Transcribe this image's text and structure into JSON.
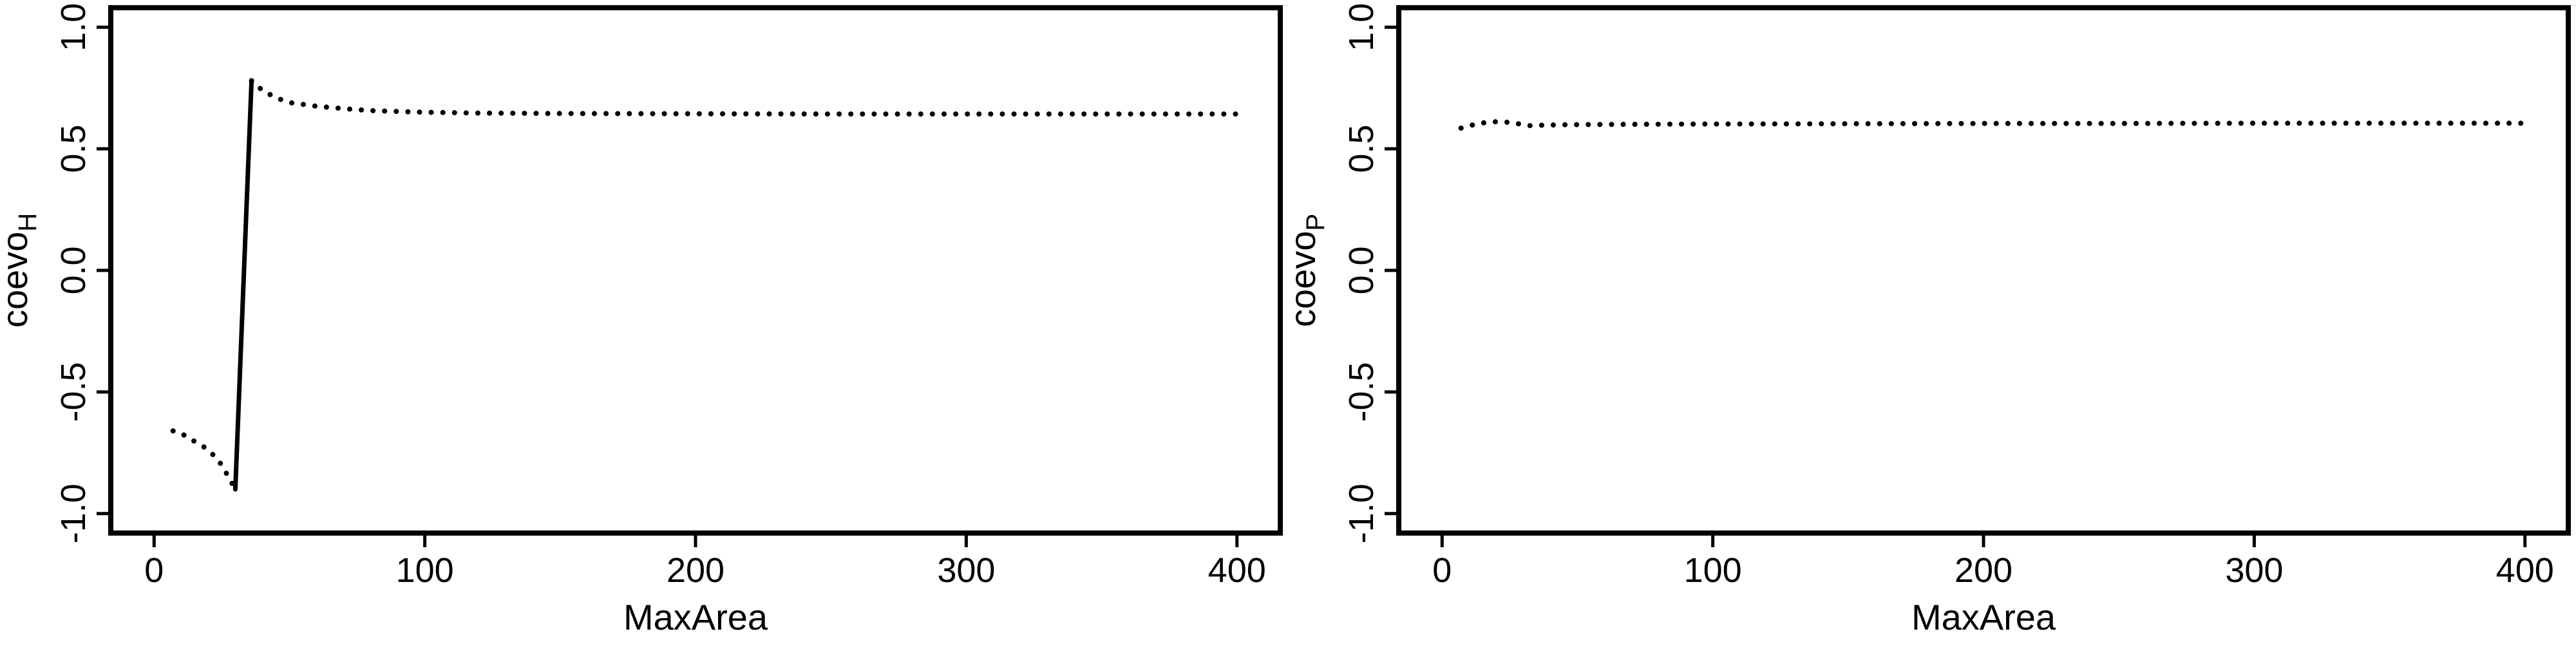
{
  "chart_data": [
    {
      "type": "line",
      "ylabel_main": "coevo",
      "ylabel_sub": "H",
      "xlabel": "MaxArea",
      "xlim": [
        0,
        400
      ],
      "ylim": [
        -1.0,
        1.0
      ],
      "x_ticks": [
        0,
        100,
        200,
        300,
        400
      ],
      "x_tick_labels": [
        "0",
        "100",
        "200",
        "300",
        "400"
      ],
      "y_ticks": [
        -1.0,
        -0.5,
        0.0,
        0.5,
        1.0
      ],
      "y_tick_labels": [
        "-1.0",
        "-0.5",
        "0.0",
        "0.5",
        "1.0"
      ],
      "grid": false,
      "series": [
        {
          "style": "dotted",
          "x": [
            7,
            10,
            13,
            16,
            19,
            22,
            25,
            28,
            30
          ],
          "y": [
            -0.66,
            -0.67,
            -0.69,
            -0.71,
            -0.73,
            -0.76,
            -0.8,
            -0.86,
            -0.9
          ]
        },
        {
          "style": "solid",
          "x": [
            30,
            36
          ],
          "y": [
            -0.9,
            0.78
          ]
        },
        {
          "style": "dotted",
          "x": [
            36,
            40,
            45,
            50,
            60,
            70,
            80,
            100,
            120,
            150,
            200,
            250,
            300,
            350,
            400
          ],
          "y": [
            0.78,
            0.74,
            0.71,
            0.69,
            0.675,
            0.665,
            0.657,
            0.65,
            0.647,
            0.645,
            0.644,
            0.643,
            0.643,
            0.643,
            0.643
          ]
        }
      ]
    },
    {
      "type": "line",
      "ylabel_main": "coevo",
      "ylabel_sub": "P",
      "xlabel": "MaxArea",
      "xlim": [
        0,
        400
      ],
      "ylim": [
        -1.0,
        1.0
      ],
      "x_ticks": [
        0,
        100,
        200,
        300,
        400
      ],
      "x_tick_labels": [
        "0",
        "100",
        "200",
        "300",
        "400"
      ],
      "y_ticks": [
        -1.0,
        -0.5,
        0.0,
        0.5,
        1.0
      ],
      "y_tick_labels": [
        "-1.0",
        "-0.5",
        "0.0",
        "0.5",
        "1.0"
      ],
      "grid": false,
      "series": [
        {
          "style": "dotted",
          "x": [
            7,
            12,
            17,
            22,
            27,
            32,
            37,
            45,
            60,
            100,
            150,
            200,
            250,
            300,
            350,
            400
          ],
          "y": [
            0.585,
            0.6,
            0.61,
            0.612,
            0.605,
            0.595,
            0.597,
            0.599,
            0.6,
            0.602,
            0.603,
            0.604,
            0.604,
            0.605,
            0.605,
            0.605
          ]
        }
      ]
    }
  ]
}
